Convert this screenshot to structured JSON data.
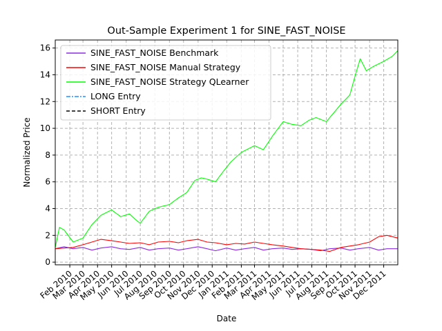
{
  "chart_data": {
    "type": "line",
    "title": "Out-Sample Experiment 1 for SINE_FAST_NOISE",
    "xlabel": "Date",
    "ylabel": "Normalized Price",
    "x_range": [
      "2010-01-01",
      "2011-12-31"
    ],
    "ylim": [
      -0.2,
      16.6
    ],
    "y_ticks": [
      0,
      2,
      4,
      6,
      8,
      10,
      12,
      14,
      16
    ],
    "x_ticks": [
      {
        "date": "2010-02-01",
        "label": "Feb 2010"
      },
      {
        "date": "2010-03-01",
        "label": "Mar 2010"
      },
      {
        "date": "2010-04-01",
        "label": "Apr 2010"
      },
      {
        "date": "2010-05-01",
        "label": "May 2010"
      },
      {
        "date": "2010-06-01",
        "label": "Jun 2010"
      },
      {
        "date": "2010-07-01",
        "label": "Jul 2010"
      },
      {
        "date": "2010-08-01",
        "label": "Aug 2010"
      },
      {
        "date": "2010-09-01",
        "label": "Sep 2010"
      },
      {
        "date": "2010-10-01",
        "label": "Oct 2010"
      },
      {
        "date": "2010-11-01",
        "label": "Nov 2010"
      },
      {
        "date": "2010-12-01",
        "label": "Dec 2010"
      },
      {
        "date": "2011-01-01",
        "label": "Jan 2011"
      },
      {
        "date": "2011-02-01",
        "label": "Feb 2011"
      },
      {
        "date": "2011-03-01",
        "label": "Mar 2011"
      },
      {
        "date": "2011-04-01",
        "label": "Apr 2011"
      },
      {
        "date": "2011-05-01",
        "label": "May 2011"
      },
      {
        "date": "2011-06-01",
        "label": "Jun 2011"
      },
      {
        "date": "2011-07-01",
        "label": "Jul 2011"
      },
      {
        "date": "2011-08-01",
        "label": "Aug 2011"
      },
      {
        "date": "2011-09-01",
        "label": "Sep 2011"
      },
      {
        "date": "2011-10-01",
        "label": "Oct 2011"
      },
      {
        "date": "2011-11-01",
        "label": "Nov 2011"
      },
      {
        "date": "2011-12-01",
        "label": "Dec 2011"
      }
    ],
    "grid": true,
    "legend_position": "upper-left",
    "series": [
      {
        "name": "SINE_FAST_NOISE Benchmark",
        "color": "#8a2be2",
        "x": [
          "2010-01-01",
          "2010-01-20",
          "2010-02-08",
          "2010-03-01",
          "2010-03-20",
          "2010-04-08",
          "2010-05-01",
          "2010-05-20",
          "2010-06-08",
          "2010-07-01",
          "2010-07-20",
          "2010-08-08",
          "2010-09-01",
          "2010-09-20",
          "2010-10-08",
          "2010-11-01",
          "2010-11-20",
          "2010-12-08",
          "2011-01-01",
          "2011-01-20",
          "2011-02-08",
          "2011-03-01",
          "2011-03-20",
          "2011-04-08",
          "2011-05-01",
          "2011-05-20",
          "2011-06-08",
          "2011-07-01",
          "2011-07-20",
          "2011-08-08",
          "2011-09-01",
          "2011-09-20",
          "2011-10-08",
          "2011-11-01",
          "2011-11-20",
          "2011-12-08",
          "2011-12-31"
        ],
        "y": [
          1.0,
          1.15,
          1.0,
          1.1,
          0.9,
          1.05,
          1.15,
          1.0,
          0.95,
          1.1,
          0.9,
          1.0,
          1.05,
          0.9,
          1.0,
          1.15,
          1.0,
          0.85,
          1.05,
          0.9,
          1.0,
          1.1,
          0.9,
          1.0,
          1.05,
          0.95,
          1.0,
          0.95,
          0.85,
          1.0,
          1.05,
          0.9,
          1.0,
          1.1,
          0.9,
          1.0,
          1.0
        ]
      },
      {
        "name": "SINE_FAST_NOISE Manual Strategy",
        "color": "#ff0000",
        "x": [
          "2010-01-01",
          "2010-01-20",
          "2010-02-08",
          "2010-03-01",
          "2010-03-20",
          "2010-04-08",
          "2010-05-01",
          "2010-05-20",
          "2010-06-08",
          "2010-07-01",
          "2010-07-20",
          "2010-08-08",
          "2010-09-01",
          "2010-09-20",
          "2010-10-08",
          "2010-11-01",
          "2010-11-20",
          "2010-12-08",
          "2011-01-01",
          "2011-01-20",
          "2011-02-08",
          "2011-03-01",
          "2011-03-20",
          "2011-04-08",
          "2011-05-01",
          "2011-05-20",
          "2011-06-08",
          "2011-07-01",
          "2011-07-20",
          "2011-08-08",
          "2011-09-01",
          "2011-09-20",
          "2011-10-08",
          "2011-11-01",
          "2011-11-20",
          "2011-12-08",
          "2011-12-31"
        ],
        "y": [
          1.0,
          1.05,
          1.1,
          1.3,
          1.5,
          1.7,
          1.6,
          1.5,
          1.4,
          1.45,
          1.3,
          1.5,
          1.55,
          1.45,
          1.6,
          1.7,
          1.5,
          1.45,
          1.3,
          1.4,
          1.35,
          1.5,
          1.4,
          1.3,
          1.2,
          1.1,
          1.0,
          0.95,
          0.9,
          0.8,
          1.1,
          1.2,
          1.3,
          1.5,
          1.9,
          2.0,
          1.8
        ]
      },
      {
        "name": "SINE_FAST_NOISE Strategy QLearner",
        "color": "#00ff00",
        "x": [
          "2010-01-01",
          "2010-01-10",
          "2010-01-20",
          "2010-02-08",
          "2010-03-01",
          "2010-03-20",
          "2010-04-08",
          "2010-05-01",
          "2010-05-20",
          "2010-06-08",
          "2010-06-20",
          "2010-07-01",
          "2010-07-20",
          "2010-08-08",
          "2010-09-01",
          "2010-09-20",
          "2010-10-08",
          "2010-10-25",
          "2010-11-08",
          "2010-11-20",
          "2010-12-08",
          "2010-12-25",
          "2011-01-10",
          "2011-02-01",
          "2011-03-01",
          "2011-03-20",
          "2011-04-08",
          "2011-05-01",
          "2011-05-20",
          "2011-06-08",
          "2011-06-25",
          "2011-07-10",
          "2011-08-01",
          "2011-09-01",
          "2011-09-20",
          "2011-10-01",
          "2011-10-12",
          "2011-10-25",
          "2011-11-08",
          "2011-12-01",
          "2011-12-20",
          "2011-12-31"
        ],
        "y": [
          1.1,
          2.6,
          2.4,
          1.5,
          1.8,
          2.8,
          3.5,
          3.9,
          3.4,
          3.6,
          3.2,
          2.9,
          3.8,
          4.1,
          4.3,
          4.8,
          5.2,
          6.1,
          6.3,
          6.2,
          6.0,
          6.8,
          7.5,
          8.2,
          8.7,
          8.4,
          9.4,
          10.5,
          10.3,
          10.2,
          10.6,
          10.8,
          10.5,
          11.8,
          12.5,
          13.9,
          15.2,
          14.3,
          14.6,
          15.0,
          15.4,
          15.8
        ]
      },
      {
        "name": "LONG Entry",
        "color": "#1e90ff",
        "x": [],
        "y": []
      },
      {
        "name": "SHORT Entry",
        "color": "#000000",
        "x": [],
        "y": []
      }
    ]
  }
}
